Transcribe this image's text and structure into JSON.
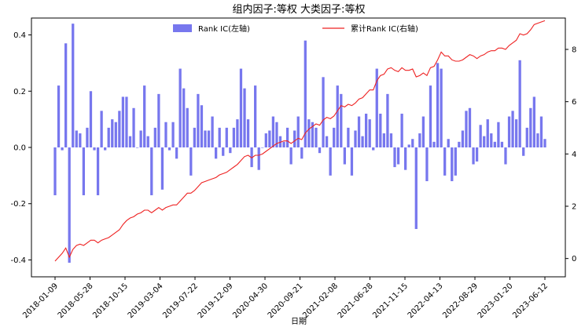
{
  "chart_data": {
    "type": "bar",
    "title": "组内因子:等权 大类因子:等权",
    "xlabel": "日期",
    "ylabel_left": "",
    "ylabel_right": "",
    "ylim_left": [
      -0.46,
      0.46
    ],
    "ylim_right": [
      -0.7,
      9.2
    ],
    "yticks_left": [
      "0.4",
      "0.2",
      "0.0",
      "-0.2",
      "-0.4"
    ],
    "yticks_left_values": [
      0.4,
      0.2,
      0.0,
      -0.2,
      -0.4
    ],
    "yticks_right": [
      "8",
      "6",
      "4",
      "2",
      "0"
    ],
    "yticks_right_values": [
      8,
      6,
      4,
      2,
      0
    ],
    "xticks": [
      "2018-01-09",
      "2018-05-28",
      "2018-10-15",
      "2019-03-04",
      "2019-07-22",
      "2019-12-09",
      "2020-04-30",
      "2020-09-21",
      "2021-02-08",
      "2021-06-28",
      "2021-11-15",
      "2022-04-13",
      "2022-08-29",
      "2023-01-20",
      "2023-06-12"
    ],
    "grid": false,
    "legend_bar": "Rank IC(左轴)",
    "legend_line": "累计Rank IC(右轴)",
    "colors": {
      "bar": "#7777ee",
      "line": "#ee2222",
      "axis": "#000000"
    },
    "series": [
      {
        "name": "Rank IC(左轴)",
        "kind": "bar",
        "axis": "left",
        "values": [
          -0.17,
          0.22,
          -0.01,
          0.37,
          -0.41,
          0.44,
          0.06,
          0.05,
          -0.17,
          0.07,
          0.2,
          -0.01,
          -0.17,
          0.13,
          -0.01,
          0.07,
          0.1,
          0.09,
          0.13,
          0.18,
          0.18,
          0.04,
          0.14,
          0.0,
          0.06,
          0.22,
          0.04,
          -0.17,
          0.07,
          0.19,
          -0.15,
          0.09,
          -0.01,
          0.09,
          -0.04,
          0.28,
          0.21,
          0.14,
          -0.1,
          0.07,
          0.19,
          0.15,
          0.06,
          0.06,
          0.11,
          -0.04,
          0.07,
          -0.03,
          0.07,
          -0.02,
          0.07,
          0.1,
          0.28,
          0.21,
          0.1,
          -0.07,
          0.22,
          -0.08,
          0.0,
          0.05,
          0.06,
          0.11,
          0.09,
          0.04,
          0.02,
          0.07,
          -0.06,
          0.06,
          0.11,
          -0.04,
          0.38,
          0.1,
          0.09,
          0.07,
          -0.02,
          0.25,
          0.04,
          -0.1,
          0.07,
          0.22,
          0.19,
          -0.06,
          0.07,
          -0.1,
          0.06,
          0.11,
          0.04,
          0.12,
          0.1,
          -0.01,
          0.28,
          0.12,
          0.05,
          0.19,
          0.05,
          -0.07,
          -0.06,
          0.12,
          -0.08,
          0.01,
          0.03,
          -0.29,
          0.05,
          0.11,
          -0.12,
          0.22,
          0.02,
          0.3,
          0.28,
          -0.1,
          0.03,
          -0.12,
          -0.1,
          0.02,
          0.06,
          0.13,
          0.14,
          -0.06,
          -0.05,
          0.08,
          0.04,
          0.1,
          0.05,
          0.02,
          0.09,
          0.02,
          -0.06,
          0.11,
          0.13,
          0.1,
          0.31,
          -0.03,
          0.07,
          0.14,
          0.18,
          0.05,
          0.11,
          0.03
        ]
      },
      {
        "name": "累计Rank IC(右轴)",
        "kind": "line",
        "axis": "right",
        "x_start": "2018-01-09",
        "x_end": "2023-06-12",
        "values": [
          -0.1,
          0.05,
          0.2,
          0.4,
          0.05,
          0.35,
          0.5,
          0.55,
          0.5,
          0.6,
          0.7,
          0.7,
          0.6,
          0.7,
          0.75,
          0.8,
          0.9,
          1.0,
          1.1,
          1.3,
          1.45,
          1.55,
          1.6,
          1.7,
          1.75,
          1.85,
          1.85,
          1.75,
          1.85,
          1.95,
          1.85,
          1.95,
          2.0,
          2.05,
          2.05,
          2.2,
          2.35,
          2.5,
          2.5,
          2.6,
          2.75,
          2.9,
          2.95,
          3.0,
          3.05,
          3.1,
          3.2,
          3.25,
          3.3,
          3.4,
          3.5,
          3.6,
          3.75,
          3.9,
          3.95,
          3.85,
          3.95,
          3.95,
          4.0,
          4.1,
          4.2,
          4.3,
          4.4,
          4.45,
          4.5,
          4.5,
          4.4,
          4.5,
          4.6,
          4.55,
          4.8,
          4.95,
          5.05,
          5.15,
          5.1,
          5.3,
          5.4,
          5.35,
          5.45,
          5.65,
          5.85,
          5.8,
          5.9,
          5.85,
          5.95,
          6.1,
          6.15,
          6.3,
          6.45,
          6.45,
          6.8,
          7.0,
          7.05,
          7.25,
          7.3,
          7.2,
          7.15,
          7.3,
          7.2,
          7.2,
          7.25,
          6.95,
          7.0,
          7.1,
          7.0,
          7.3,
          7.35,
          7.6,
          7.9,
          7.75,
          7.75,
          7.6,
          7.55,
          7.55,
          7.6,
          7.7,
          7.8,
          7.75,
          7.65,
          7.75,
          7.8,
          7.9,
          7.95,
          7.95,
          8.05,
          8.05,
          8.0,
          8.15,
          8.25,
          8.35,
          8.6,
          8.55,
          8.6,
          8.75,
          8.95,
          9.0,
          9.05,
          9.1
        ]
      }
    ]
  }
}
